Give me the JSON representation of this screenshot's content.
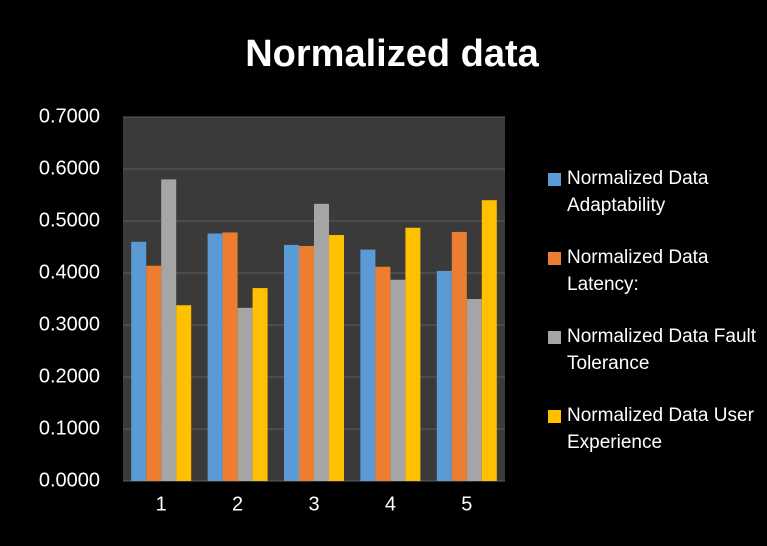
{
  "chart_data": {
    "type": "bar",
    "title": "Normalized data",
    "categories": [
      "1",
      "2",
      "3",
      "4",
      "5"
    ],
    "series": [
      {
        "name": "Normalized Data Adaptability",
        "color": "#5b9bd5",
        "values": [
          0.46,
          0.476,
          0.454,
          0.445,
          0.404
        ]
      },
      {
        "name": "Normalized Data Latency:",
        "color": "#ed7d31",
        "values": [
          0.414,
          0.478,
          0.452,
          0.412,
          0.479
        ]
      },
      {
        "name": "Normalized Data Fault Tolerance",
        "color": "#a5a5a5",
        "values": [
          0.58,
          0.333,
          0.533,
          0.387,
          0.35
        ]
      },
      {
        "name": "Normalized Data User Experience",
        "color": "#ffc000",
        "values": [
          0.338,
          0.371,
          0.473,
          0.487,
          0.54
        ]
      }
    ],
    "ylim": [
      0,
      0.7
    ],
    "yticks": [
      {
        "value": 0,
        "label": "0.0000"
      },
      {
        "value": 0.1,
        "label": "0.1000"
      },
      {
        "value": 0.2,
        "label": "0.2000"
      },
      {
        "value": 0.3,
        "label": "0.3000"
      },
      {
        "value": 0.4,
        "label": "0.4000"
      },
      {
        "value": 0.5,
        "label": "0.5000"
      },
      {
        "value": 0.6,
        "label": "0.6000"
      },
      {
        "value": 0.7,
        "label": "0.7000"
      }
    ],
    "grid": true,
    "legend": "right"
  }
}
